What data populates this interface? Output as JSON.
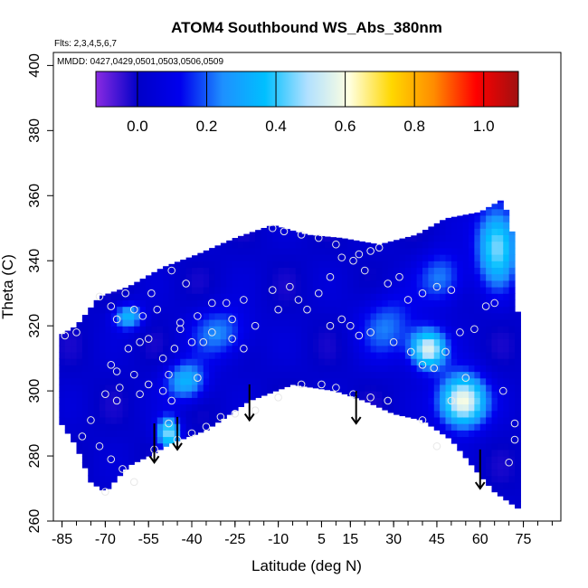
{
  "chart_data": {
    "type": "heatmap",
    "title": "ATOM4 Southbound WS_Abs_380nm",
    "flights_note": "Flts: 2,3,4,5,6,7",
    "dates_note": "MMDD: 0427,0429,0501,0503,0506,0509",
    "xlabel": "Latitude (deg N)",
    "ylabel": "Theta (C)",
    "xlim": [
      -88,
      88
    ],
    "ylim": [
      260,
      404
    ],
    "x_ticks": [
      -85,
      -70,
      -55,
      -40,
      -25,
      -10,
      5,
      15,
      30,
      45,
      60,
      75
    ],
    "x_minor_step": 5,
    "y_ticks": [
      260,
      280,
      300,
      320,
      340,
      360,
      380,
      400
    ],
    "colorbar": {
      "range": [
        -0.12,
        1.1
      ],
      "ticks": [
        0.0,
        0.2,
        0.4,
        0.6,
        0.8,
        1.0
      ],
      "tick_labels": [
        "0.0",
        "0.2",
        "0.4",
        "0.6",
        "0.8",
        "1.0"
      ],
      "colors": [
        "#8a2be2",
        "#0000c8",
        "#0000ee",
        "#1e90ff",
        "#00bfff",
        "#b0e0ff",
        "#ffffe0",
        "#ffd700",
        "#ff8c00",
        "#ff0000",
        "#a01010"
      ]
    },
    "upper_boundary": [
      [
        -86,
        317
      ],
      [
        -80,
        320
      ],
      [
        -72,
        329
      ],
      [
        -62,
        332
      ],
      [
        -50,
        338
      ],
      [
        -38,
        342
      ],
      [
        -25,
        347
      ],
      [
        -12,
        351
      ],
      [
        0,
        348
      ],
      [
        12,
        347
      ],
      [
        25,
        345
      ],
      [
        38,
        348
      ],
      [
        48,
        353
      ],
      [
        60,
        355
      ],
      [
        68,
        359
      ],
      [
        71,
        349
      ],
      [
        74,
        312
      ],
      [
        75,
        295
      ]
    ],
    "lower_boundary": [
      [
        75,
        295
      ],
      [
        73,
        264
      ],
      [
        65,
        269
      ],
      [
        60,
        274
      ],
      [
        50,
        285
      ],
      [
        40,
        291
      ],
      [
        30,
        293
      ],
      [
        20,
        297
      ],
      [
        10,
        300
      ],
      [
        -5,
        302
      ],
      [
        -20,
        297
      ],
      [
        -35,
        288
      ],
      [
        -47,
        284
      ],
      [
        -55,
        280
      ],
      [
        -62,
        277
      ],
      [
        -70,
        269
      ],
      [
        -75,
        272
      ],
      [
        -80,
        283
      ],
      [
        -86,
        291
      ]
    ],
    "field_sources": [
      {
        "lat": 54,
        "theta": 297,
        "value": 0.62,
        "spread_lat": 8,
        "spread_theta": 8
      },
      {
        "lat": 42,
        "theta": 313,
        "value": 0.55,
        "spread_lat": 6,
        "spread_theta": 6
      },
      {
        "lat": 66,
        "theta": 345,
        "value": 0.45,
        "spread_lat": 7,
        "spread_theta": 12
      },
      {
        "lat": -48,
        "theta": 287,
        "value": 0.45,
        "spread_lat": 4,
        "spread_theta": 5
      },
      {
        "lat": -42,
        "theta": 303,
        "value": 0.32,
        "spread_lat": 7,
        "spread_theta": 6
      },
      {
        "lat": -62,
        "theta": 323,
        "value": 0.32,
        "spread_lat": 5,
        "spread_theta": 4
      },
      {
        "lat": -30,
        "theta": 318,
        "value": 0.22,
        "spread_lat": 10,
        "spread_theta": 8
      },
      {
        "lat": 28,
        "theta": 320,
        "value": 0.2,
        "spread_lat": 10,
        "spread_theta": 10
      },
      {
        "lat": 47,
        "theta": 335,
        "value": 0.22,
        "spread_lat": 8,
        "spread_theta": 8
      }
    ],
    "obs_points": [
      [
        -84,
        317
      ],
      [
        -80,
        318
      ],
      [
        -72,
        329
      ],
      [
        -68,
        326
      ],
      [
        -66,
        322
      ],
      [
        -63,
        330
      ],
      [
        -60,
        325
      ],
      [
        -57,
        323
      ],
      [
        -54,
        330
      ],
      [
        -52,
        325
      ],
      [
        -62,
        313
      ],
      [
        -58,
        315
      ],
      [
        -55,
        316
      ],
      [
        -68,
        308
      ],
      [
        -66,
        306
      ],
      [
        -60,
        305
      ],
      [
        -55,
        302
      ],
      [
        -58,
        299
      ],
      [
        -65,
        301
      ],
      [
        -66,
        297
      ],
      [
        -70,
        299
      ],
      [
        -50,
        300
      ],
      [
        -47,
        297
      ],
      [
        -48,
        290
      ],
      [
        -75,
        291
      ],
      [
        -78,
        286
      ],
      [
        -72,
        283
      ],
      [
        -68,
        279
      ],
      [
        -64,
        276
      ],
      [
        -60,
        272
      ],
      [
        -70,
        269
      ],
      [
        -53,
        282
      ],
      [
        -45,
        285
      ],
      [
        -40,
        287
      ],
      [
        -35,
        289
      ],
      [
        -30,
        292
      ],
      [
        -46,
        313
      ],
      [
        -40,
        315
      ],
      [
        -36,
        315
      ],
      [
        -33,
        318
      ],
      [
        -26,
        316
      ],
      [
        -22,
        313
      ],
      [
        -44,
        321
      ],
      [
        -38,
        323
      ],
      [
        -33,
        327
      ],
      [
        -28,
        327
      ],
      [
        -22,
        328
      ],
      [
        -12,
        331
      ],
      [
        -47,
        337
      ],
      [
        -42,
        333
      ],
      [
        -26,
        322
      ],
      [
        -18,
        320
      ],
      [
        -10,
        325
      ],
      [
        -6,
        332
      ],
      [
        -3,
        328
      ],
      [
        0,
        325
      ],
      [
        4,
        330
      ],
      [
        8,
        335
      ],
      [
        12,
        341
      ],
      [
        16,
        340
      ],
      [
        20,
        337
      ],
      [
        -12,
        350
      ],
      [
        -8,
        349
      ],
      [
        -2,
        348
      ],
      [
        4,
        347
      ],
      [
        10,
        345
      ],
      [
        18,
        342
      ],
      [
        22,
        343
      ],
      [
        25,
        344
      ],
      [
        28,
        333
      ],
      [
        32,
        335
      ],
      [
        35,
        328
      ],
      [
        40,
        330
      ],
      [
        45,
        332
      ],
      [
        50,
        331
      ],
      [
        8,
        320
      ],
      [
        12,
        322
      ],
      [
        15,
        320
      ],
      [
        18,
        317
      ],
      [
        22,
        318
      ],
      [
        30,
        315
      ],
      [
        36,
        312
      ],
      [
        40,
        308
      ],
      [
        44,
        307
      ],
      [
        48,
        312
      ],
      [
        53,
        318
      ],
      [
        58,
        319
      ],
      [
        62,
        326
      ],
      [
        65,
        327
      ],
      [
        55,
        304
      ],
      [
        50,
        297
      ],
      [
        45,
        283
      ],
      [
        40,
        291
      ],
      [
        28,
        297
      ],
      [
        22,
        298
      ],
      [
        16,
        299
      ],
      [
        10,
        301
      ],
      [
        5,
        302
      ],
      [
        -2,
        302
      ],
      [
        -10,
        298
      ],
      [
        -18,
        294
      ],
      [
        -25,
        293
      ],
      [
        68,
        300
      ],
      [
        72,
        290
      ],
      [
        72,
        285
      ],
      [
        70,
        278
      ],
      [
        -38,
        304
      ],
      [
        -48,
        305
      ],
      [
        -50,
        310
      ],
      [
        -44,
        319
      ]
    ],
    "arrows": [
      {
        "lat": -53,
        "theta": 290,
        "length": 12
      },
      {
        "lat": -45,
        "theta": 292,
        "length": 10
      },
      {
        "lat": -20,
        "theta": 302,
        "length": 11
      },
      {
        "lat": 17,
        "theta": 300,
        "length": 10
      },
      {
        "lat": 60,
        "theta": 282,
        "length": 12
      }
    ]
  }
}
